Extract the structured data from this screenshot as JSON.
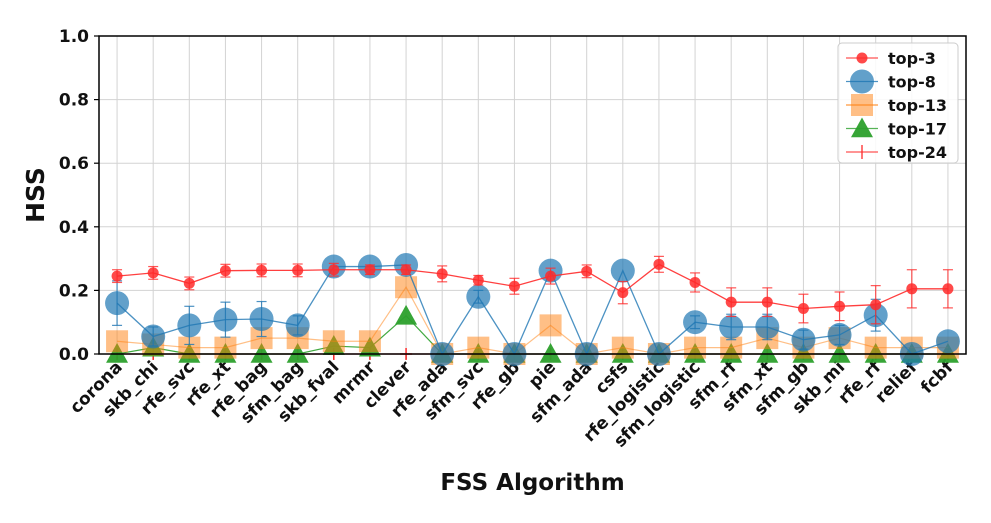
{
  "chart_data": {
    "type": "line",
    "xlabel": "FSS Algorithm",
    "ylabel": "HSS",
    "ylim": [
      0,
      1
    ],
    "yticks": [
      "0.0",
      "0.2",
      "0.4",
      "0.6",
      "0.8",
      "1.0"
    ],
    "grid": true,
    "legend_position": "top-right",
    "categories": [
      "corona",
      "skb_chi",
      "rfe_svc",
      "rfe_xt",
      "rfe_bag",
      "sfm_bag",
      "skb_fval",
      "mrmr",
      "clever",
      "rfe_ada",
      "sfm_svc",
      "rfe_gb",
      "pie",
      "sfm_ada",
      "csfs",
      "rfe_logistic",
      "sfm_logistic",
      "sfm_rf",
      "sfm_xt",
      "sfm_gb",
      "skb_mi",
      "rfe_rf",
      "relief",
      "fcbf"
    ],
    "series": [
      {
        "name": "top-3",
        "marker": "circle-small",
        "color": "#ff2a2a",
        "values": [
          0.245,
          0.255,
          0.222,
          0.262,
          0.263,
          0.263,
          0.265,
          0.265,
          0.265,
          0.252,
          0.232,
          0.213,
          0.245,
          0.26,
          0.193,
          0.282,
          0.225,
          0.163,
          0.163,
          0.143,
          0.15,
          0.155,
          0.205,
          0.205
        ],
        "errors": [
          0.02,
          0.02,
          0.02,
          0.02,
          0.02,
          0.02,
          0.02,
          0.015,
          0.015,
          0.025,
          0.015,
          0.025,
          0.025,
          0.02,
          0.035,
          0.025,
          0.03,
          0.045,
          0.045,
          0.045,
          0.045,
          0.06,
          0.06,
          0.06
        ]
      },
      {
        "name": "top-8",
        "marker": "circle-large",
        "color": "#1f77b4",
        "values": [
          0.16,
          0.055,
          0.09,
          0.108,
          0.11,
          0.09,
          0.275,
          0.275,
          0.28,
          0.0,
          0.18,
          0.0,
          0.262,
          0.0,
          0.262,
          0.0,
          0.1,
          0.085,
          0.085,
          0.045,
          0.06,
          0.122,
          0.0,
          0.04
        ],
        "errors": [
          0.07,
          0.03,
          0.06,
          0.055,
          0.055,
          0.03,
          0.0,
          0.0,
          0.0,
          0.0,
          0.02,
          0.0,
          0.0,
          0.0,
          0.0,
          0.0,
          0.02,
          0.04,
          0.04,
          0.03,
          0.03,
          0.05,
          0.0,
          0.0
        ]
      },
      {
        "name": "top-13",
        "marker": "square",
        "color": "#ff7f0e",
        "values": [
          0.04,
          0.03,
          0.02,
          0.02,
          0.05,
          0.05,
          0.04,
          0.04,
          0.21,
          0.0,
          0.02,
          0.0,
          0.09,
          0.0,
          0.02,
          0.0,
          0.02,
          0.02,
          0.05,
          0.02,
          0.05,
          0.02,
          0.02,
          0.02
        ]
      },
      {
        "name": "top-17",
        "marker": "triangle",
        "color": "#2ca02c",
        "values": [
          0.0,
          0.02,
          0.0,
          0.0,
          0.0,
          0.0,
          0.025,
          0.02,
          0.12,
          0.0,
          0.0,
          0.0,
          0.0,
          0.0,
          0.0,
          0.0,
          0.0,
          0.0,
          0.0,
          0.0,
          0.0,
          0.0,
          0.0,
          0.0
        ]
      },
      {
        "name": "top-24",
        "marker": "plus",
        "color": "#ff2a2a",
        "values": [
          0,
          0,
          0,
          0,
          0,
          0,
          0,
          0,
          0,
          0,
          0,
          0,
          0,
          0,
          0,
          0,
          0,
          0,
          0,
          0,
          0,
          0,
          0,
          0
        ]
      }
    ]
  }
}
